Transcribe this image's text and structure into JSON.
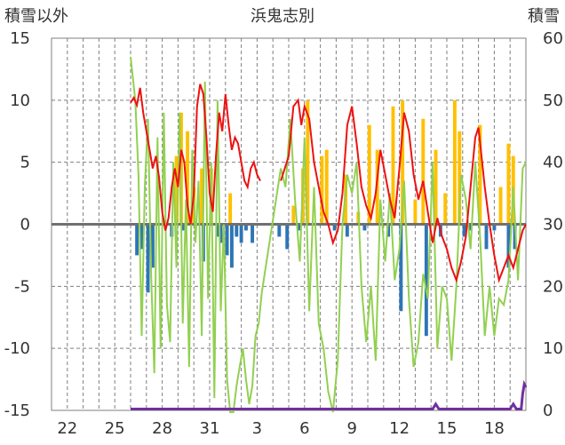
{
  "chart_data": {
    "type": "bar+line",
    "title": "浜鬼志別",
    "left_axis_label": "積雪以外",
    "right_axis_label": "積雪",
    "left_ylim": [
      -15,
      15
    ],
    "left_yticks": [
      15,
      10,
      5,
      0,
      -5,
      -10,
      -15
    ],
    "right_ylim": [
      0,
      60
    ],
    "right_yticks": [
      60,
      50,
      40,
      30,
      20,
      10,
      0
    ],
    "x_range": [
      0,
      30
    ],
    "x_ticks": [
      {
        "x": 1,
        "label": "22"
      },
      {
        "x": 4,
        "label": "25"
      },
      {
        "x": 7,
        "label": "28"
      },
      {
        "x": 10,
        "label": "31"
      },
      {
        "x": 13,
        "label": "3"
      },
      {
        "x": 16,
        "label": "6"
      },
      {
        "x": 19,
        "label": "9"
      },
      {
        "x": 22,
        "label": "12"
      },
      {
        "x": 25,
        "label": "15"
      },
      {
        "x": 28,
        "label": "18"
      }
    ],
    "grid": true,
    "colors": {
      "temperature": "#ee1111",
      "precipitation": "#ffc000",
      "negative_bars": "#2e75b6",
      "green_series": "#92d050",
      "snow_depth": "#7030a0",
      "zero_line": "#707070",
      "grid": "#7f7f7f"
    },
    "temperature": [
      [
        5.0,
        9.8
      ],
      [
        5.2,
        10.2
      ],
      [
        5.4,
        9.6
      ],
      [
        5.6,
        11.0
      ],
      [
        5.8,
        9.0
      ],
      [
        6.0,
        7.5
      ],
      [
        6.2,
        6.0
      ],
      [
        6.4,
        4.5
      ],
      [
        6.6,
        5.5
      ],
      [
        6.8,
        3.8
      ],
      [
        7.0,
        1.0
      ],
      [
        7.2,
        -0.5
      ],
      [
        7.4,
        0.5
      ],
      [
        7.6,
        3.0
      ],
      [
        7.8,
        4.5
      ],
      [
        8.0,
        3.0
      ],
      [
        8.2,
        6.0
      ],
      [
        8.4,
        5.0
      ],
      [
        8.6,
        1.5
      ],
      [
        8.8,
        0.0
      ],
      [
        9.0,
        2.5
      ],
      [
        9.2,
        9.5
      ],
      [
        9.4,
        11.3
      ],
      [
        9.6,
        10.5
      ],
      [
        9.8,
        7.0
      ],
      [
        10.0,
        2.5
      ],
      [
        10.2,
        1.0
      ],
      [
        10.4,
        5.5
      ],
      [
        10.6,
        9.0
      ],
      [
        10.8,
        7.5
      ],
      [
        11.0,
        10.5
      ],
      [
        11.2,
        8.0
      ],
      [
        11.4,
        6.0
      ],
      [
        11.6,
        7.0
      ],
      [
        11.8,
        6.5
      ],
      [
        12.0,
        5.0
      ],
      [
        12.2,
        3.5
      ],
      [
        12.4,
        3.0
      ],
      [
        12.6,
        4.5
      ],
      [
        12.8,
        5.0
      ],
      [
        13.0,
        4.0
      ],
      [
        13.2,
        3.5
      ],
      [
        14.5,
        3.5
      ],
      [
        15.0,
        5.5
      ],
      [
        15.3,
        9.5
      ],
      [
        15.6,
        10.0
      ],
      [
        15.8,
        8.0
      ],
      [
        16.0,
        9.5
      ],
      [
        16.3,
        8.5
      ],
      [
        16.6,
        5.0
      ],
      [
        16.9,
        3.0
      ],
      [
        17.2,
        1.0
      ],
      [
        17.5,
        0.0
      ],
      [
        17.8,
        -1.5
      ],
      [
        18.1,
        -0.5
      ],
      [
        18.4,
        2.5
      ],
      [
        18.7,
        8.0
      ],
      [
        19.0,
        9.5
      ],
      [
        19.3,
        6.5
      ],
      [
        19.6,
        3.0
      ],
      [
        19.9,
        1.5
      ],
      [
        20.2,
        0.5
      ],
      [
        20.5,
        2.5
      ],
      [
        20.8,
        6.0
      ],
      [
        21.1,
        4.0
      ],
      [
        21.4,
        2.0
      ],
      [
        21.7,
        0.5
      ],
      [
        22.0,
        4.5
      ],
      [
        22.3,
        9.0
      ],
      [
        22.6,
        7.5
      ],
      [
        22.9,
        4.0
      ],
      [
        23.2,
        2.0
      ],
      [
        23.5,
        3.5
      ],
      [
        23.8,
        1.0
      ],
      [
        24.1,
        -1.5
      ],
      [
        24.4,
        0.5
      ],
      [
        24.7,
        -1.0
      ],
      [
        25.0,
        -2.0
      ],
      [
        25.3,
        -3.5
      ],
      [
        25.6,
        -4.5
      ],
      [
        25.9,
        -3.0
      ],
      [
        26.2,
        -1.0
      ],
      [
        26.5,
        3.0
      ],
      [
        26.8,
        7.0
      ],
      [
        27.0,
        7.8
      ],
      [
        27.4,
        3.0
      ],
      [
        27.7,
        0.0
      ],
      [
        28.0,
        -2.5
      ],
      [
        28.3,
        -4.5
      ],
      [
        28.6,
        -3.5
      ],
      [
        28.9,
        -2.5
      ],
      [
        29.2,
        -3.5
      ],
      [
        29.5,
        -2.0
      ],
      [
        29.8,
        -0.5
      ],
      [
        30.0,
        0.0
      ]
    ],
    "green_series": [
      [
        5.0,
        13.5
      ],
      [
        5.3,
        10.0
      ],
      [
        5.5,
        4.0
      ],
      [
        5.7,
        -9.0
      ],
      [
        5.9,
        3.0
      ],
      [
        6.1,
        8.5
      ],
      [
        6.3,
        -4.0
      ],
      [
        6.5,
        -12.0
      ],
      [
        6.7,
        7.0
      ],
      [
        6.9,
        -10.0
      ],
      [
        7.1,
        9.0
      ],
      [
        7.3,
        -6.5
      ],
      [
        7.5,
        -9.5
      ],
      [
        7.7,
        5.0
      ],
      [
        7.9,
        -3.5
      ],
      [
        8.1,
        9.0
      ],
      [
        8.3,
        -8.0
      ],
      [
        8.5,
        2.0
      ],
      [
        8.7,
        -11.5
      ],
      [
        8.9,
        6.0
      ],
      [
        9.1,
        -1.5
      ],
      [
        9.3,
        3.5
      ],
      [
        9.5,
        -9.0
      ],
      [
        9.7,
        11.5
      ],
      [
        9.9,
        -6.0
      ],
      [
        10.1,
        5.0
      ],
      [
        10.3,
        -14.0
      ],
      [
        10.5,
        10.0
      ],
      [
        10.7,
        -7.0
      ],
      [
        10.9,
        0.0
      ],
      [
        11.1,
        -12.5
      ],
      [
        11.3,
        -15.5
      ],
      [
        11.5,
        -16.5
      ],
      [
        11.7,
        -13.0
      ],
      [
        11.9,
        -11.5
      ],
      [
        12.1,
        -10.0
      ],
      [
        12.3,
        -12.5
      ],
      [
        12.5,
        -14.5
      ],
      [
        12.7,
        -13.0
      ],
      [
        12.9,
        -9.0
      ],
      [
        13.1,
        -8.0
      ],
      [
        13.3,
        -5.5
      ],
      [
        14.5,
        4.5
      ],
      [
        14.8,
        3.0
      ],
      [
        15.1,
        8.5
      ],
      [
        15.4,
        2.0
      ],
      [
        15.7,
        -3.0
      ],
      [
        16.0,
        7.0
      ],
      [
        16.3,
        -7.0
      ],
      [
        16.6,
        3.0
      ],
      [
        16.9,
        -8.0
      ],
      [
        17.2,
        -10.0
      ],
      [
        17.5,
        -13.5
      ],
      [
        17.8,
        -15.5
      ],
      [
        18.1,
        -11.0
      ],
      [
        18.4,
        0.0
      ],
      [
        18.7,
        4.0
      ],
      [
        19.0,
        2.5
      ],
      [
        19.3,
        5.0
      ],
      [
        19.6,
        -5.0
      ],
      [
        19.9,
        -9.5
      ],
      [
        20.2,
        -5.0
      ],
      [
        20.5,
        -11.0
      ],
      [
        20.8,
        2.0
      ],
      [
        21.1,
        -3.0
      ],
      [
        21.4,
        2.5
      ],
      [
        21.7,
        -4.5
      ],
      [
        22.0,
        -2.0
      ],
      [
        22.3,
        3.5
      ],
      [
        22.6,
        -6.0
      ],
      [
        22.9,
        -11.5
      ],
      [
        23.2,
        -9.5
      ],
      [
        23.5,
        -4.0
      ],
      [
        23.8,
        -6.0
      ],
      [
        24.1,
        5.0
      ],
      [
        24.4,
        -10.0
      ],
      [
        24.7,
        -5.0
      ],
      [
        25.0,
        -6.0
      ],
      [
        25.3,
        -11.0
      ],
      [
        25.6,
        -5.0
      ],
      [
        25.9,
        4.0
      ],
      [
        26.2,
        2.0
      ],
      [
        26.5,
        -2.0
      ],
      [
        26.8,
        5.0
      ],
      [
        27.1,
        -1.0
      ],
      [
        27.4,
        -9.0
      ],
      [
        27.7,
        -5.0
      ],
      [
        28.0,
        -9.0
      ],
      [
        28.3,
        -6.0
      ],
      [
        28.6,
        -6.5
      ],
      [
        28.9,
        -4.5
      ],
      [
        29.2,
        3.0
      ],
      [
        29.5,
        -4.5
      ],
      [
        29.8,
        4.5
      ],
      [
        30.0,
        5.0
      ]
    ],
    "precipitation_bars": [
      [
        7.9,
        5.5
      ],
      [
        8.2,
        9.0
      ],
      [
        8.6,
        7.5
      ],
      [
        9.0,
        3.0
      ],
      [
        9.5,
        4.5
      ],
      [
        10.1,
        4.5
      ],
      [
        11.3,
        2.5
      ],
      [
        15.3,
        1.5
      ],
      [
        15.9,
        4.5
      ],
      [
        16.2,
        10.0
      ],
      [
        17.1,
        5.5
      ],
      [
        17.4,
        6.0
      ],
      [
        18.6,
        4.0
      ],
      [
        19.4,
        1.0
      ],
      [
        20.1,
        8.0
      ],
      [
        20.6,
        6.0
      ],
      [
        21.6,
        9.5
      ],
      [
        22.2,
        10.0
      ],
      [
        23.0,
        2.0
      ],
      [
        23.5,
        8.5
      ],
      [
        24.3,
        6.0
      ],
      [
        24.9,
        2.5
      ],
      [
        25.5,
        10.0
      ],
      [
        25.8,
        7.5
      ],
      [
        27.1,
        8.0
      ],
      [
        28.4,
        3.0
      ],
      [
        28.9,
        6.5
      ],
      [
        29.2,
        5.5
      ]
    ],
    "negative_bars": [
      [
        5.4,
        -2.5
      ],
      [
        5.7,
        -2.0
      ],
      [
        6.1,
        -5.5
      ],
      [
        6.4,
        -3.5
      ],
      [
        7.6,
        -1.0
      ],
      [
        8.3,
        -0.5
      ],
      [
        9.6,
        -3.0
      ],
      [
        10.5,
        -1.0
      ],
      [
        10.7,
        -1.5
      ],
      [
        11.1,
        -2.5
      ],
      [
        11.4,
        -3.5
      ],
      [
        11.7,
        -1.0
      ],
      [
        12.0,
        -1.5
      ],
      [
        12.3,
        -0.5
      ],
      [
        12.7,
        -1.5
      ],
      [
        14.4,
        -1.0
      ],
      [
        14.9,
        -2.0
      ],
      [
        15.7,
        -0.5
      ],
      [
        17.9,
        -0.5
      ],
      [
        18.7,
        -1.0
      ],
      [
        19.8,
        -0.5
      ],
      [
        21.3,
        -1.0
      ],
      [
        22.1,
        -7.0
      ],
      [
        23.7,
        -9.0
      ],
      [
        24.6,
        -1.0
      ],
      [
        26.1,
        -1.0
      ],
      [
        26.5,
        -0.5
      ],
      [
        27.5,
        -2.0
      ],
      [
        28.0,
        -0.5
      ],
      [
        28.9,
        -3.5
      ],
      [
        29.3,
        -2.0
      ]
    ],
    "snow_depth": [
      [
        5.0,
        0
      ],
      [
        24.1,
        0
      ],
      [
        24.3,
        0.8
      ],
      [
        24.5,
        0
      ],
      [
        29.0,
        0
      ],
      [
        29.2,
        0.8
      ],
      [
        29.4,
        0
      ],
      [
        29.7,
        0
      ],
      [
        29.8,
        2.5
      ],
      [
        29.9,
        4.0
      ],
      [
        30.0,
        3.5
      ]
    ]
  }
}
